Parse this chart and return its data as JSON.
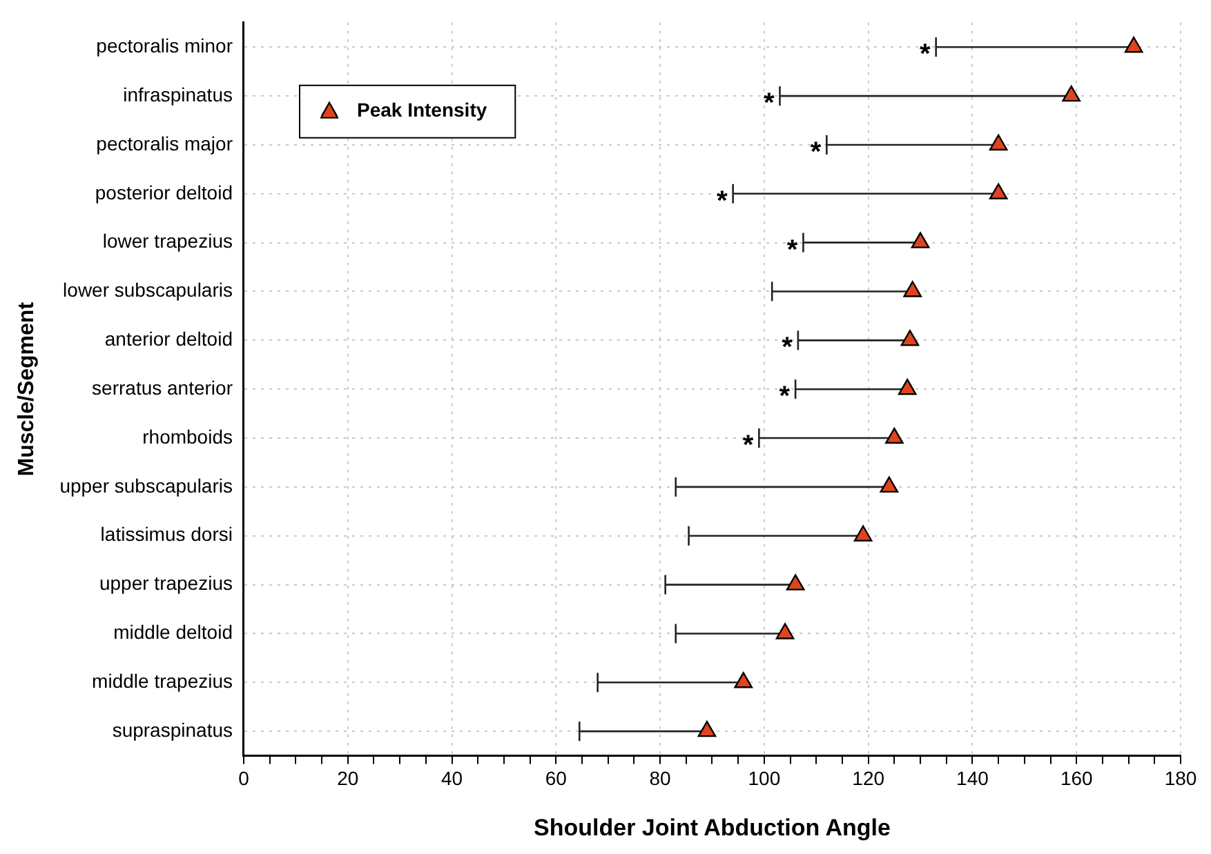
{
  "chart_data": {
    "type": "scatter",
    "xlabel": "Shoulder Joint Abduction Angle",
    "ylabel": "Muscle/Segment",
    "categories": [
      "pectoralis minor",
      "infraspinatus",
      "pectoralis major",
      "posterior deltoid",
      "lower trapezius",
      "lower subscapularis",
      "anterior deltoid",
      "serratus anterior",
      "rhomboids",
      "upper subscapularis",
      "latissimus dorsi",
      "upper trapezius",
      "middle deltoid",
      "middle trapezius",
      "supraspinatus"
    ],
    "series": [
      {
        "name": "Peak Intensity",
        "color": "#e0441f",
        "marker": "triangle",
        "values": [
          171,
          159,
          145,
          145,
          130,
          128.5,
          128,
          127.5,
          125,
          124,
          119,
          106,
          104,
          96,
          89
        ],
        "errors": [
          [
            133,
            171
          ],
          [
            103,
            159
          ],
          [
            112,
            145
          ],
          [
            94,
            145
          ],
          [
            107.5,
            130
          ],
          [
            101.5,
            128.5
          ],
          [
            106.5,
            128
          ],
          [
            106,
            127.5
          ],
          [
            99,
            125
          ],
          [
            83,
            124
          ],
          [
            85.5,
            119
          ],
          [
            81,
            106
          ],
          [
            83,
            104
          ],
          [
            68,
            96
          ],
          [
            64.5,
            89
          ]
        ]
      }
    ],
    "xlim": [
      0,
      180
    ],
    "orientation": "horizontal",
    "xticks": [
      0,
      {
        "value": 5,
        "label": null
      },
      {
        "value": 10,
        "label": null
      },
      {
        "value": 15,
        "label": null
      },
      20,
      {
        "value": 25,
        "label": null
      },
      {
        "value": 30,
        "label": null
      },
      {
        "value": 35,
        "label": null
      },
      40,
      {
        "value": 45,
        "label": null
      },
      {
        "value": 50,
        "label": null
      },
      {
        "value": 55,
        "label": null
      },
      60,
      {
        "value": 65,
        "label": null
      },
      {
        "value": 70,
        "label": null
      },
      {
        "value": 75,
        "label": null
      },
      80,
      {
        "value": 85,
        "label": null
      },
      {
        "value": 90,
        "label": null
      },
      {
        "value": 95,
        "label": null
      },
      100,
      {
        "value": 105,
        "label": null
      },
      {
        "value": 110,
        "label": null
      },
      {
        "value": 115,
        "label": null
      },
      120,
      {
        "value": 125,
        "label": null
      },
      {
        "value": 130,
        "label": null
      },
      {
        "value": 135,
        "label": null
      },
      140,
      {
        "value": 145,
        "label": null
      },
      {
        "value": 150,
        "label": null
      },
      {
        "value": 155,
        "label": null
      },
      160,
      {
        "value": 165,
        "label": null
      },
      {
        "value": 170,
        "label": null
      },
      {
        "value": 175,
        "label": null
      },
      180
    ],
    "annotations": [
      {
        "text": "*",
        "x": 133,
        "y": "pectoralis minor"
      },
      {
        "text": "*",
        "x": 103,
        "y": "infraspinatus"
      },
      {
        "text": "*",
        "x": 112,
        "y": "pectoralis major"
      },
      {
        "text": "*",
        "x": 94,
        "y": "posterior deltoid"
      },
      {
        "text": "*",
        "x": 107.5,
        "y": "lower trapezius"
      },
      {
        "text": "*",
        "x": 106.5,
        "y": "anterior deltoid"
      },
      {
        "text": "*",
        "x": 106,
        "y": "serratus anterior"
      },
      {
        "text": "*",
        "x": 99,
        "y": "rhomboids"
      }
    ],
    "grid": true,
    "legend": "top left"
  }
}
